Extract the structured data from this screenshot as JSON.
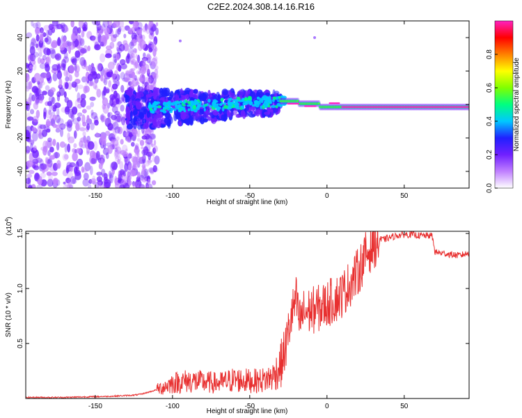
{
  "title": "C2E2.2024.308.14.16.R16",
  "chart_data": [
    {
      "type": "heatmap",
      "title": "C2E2.2024.308.14.16.R16",
      "xlabel": "Height of straight line (km)",
      "ylabel": "Frequency (Hz)",
      "xlim": [
        -195,
        92
      ],
      "ylim": [
        -50,
        50
      ],
      "x_ticks": [
        "-150",
        "-100",
        "-50",
        "0",
        "50"
      ],
      "x_tick_values": [
        -150,
        -100,
        -50,
        0,
        50
      ],
      "y_ticks": [
        "-40",
        "-20",
        "0",
        "20",
        "40"
      ],
      "y_tick_values": [
        -40,
        -20,
        0,
        20,
        40
      ],
      "colorbar": {
        "label": "Normalized spectral amplitude",
        "range": [
          0,
          1
        ],
        "ticks": [
          "0.0",
          "0.2",
          "0.4",
          "0.6",
          "0.8"
        ],
        "tick_values": [
          0.0,
          0.2,
          0.4,
          0.6,
          0.8
        ],
        "colors": [
          "#ffffff",
          "#c080ff",
          "#7020ff",
          "#2020ff",
          "#00c8ff",
          "#00ff80",
          "#80ff00",
          "#ffff00",
          "#ff8000",
          "#ff0000",
          "#ff20c0"
        ]
      },
      "regions": [
        {
          "x_range": [
            -195,
            -110
          ],
          "freq_range": [
            -50,
            50
          ],
          "description_level": "scattered low amplitude"
        },
        {
          "x_range": [
            -130,
            -30
          ],
          "freq_range": [
            -15,
            12
          ],
          "description_level": "blue to cyan band"
        },
        {
          "x_range": [
            -30,
            5
          ],
          "freq_range": [
            -3,
            5
          ],
          "description_level": "green to red band"
        },
        {
          "x_range": [
            5,
            92
          ],
          "freq_range": [
            -3,
            1
          ],
          "description_level": "narrow red-green line"
        }
      ]
    },
    {
      "type": "line",
      "xlabel": "Height of straight line (km)",
      "ylabel": "SNR (10 * v/v)",
      "y_multiplier": "(x10",
      "y_multiplier_exp": "4",
      "y_multiplier_close": ")",
      "xlim": [
        -195,
        92
      ],
      "ylim": [
        0,
        1.52
      ],
      "x_ticks": [
        "-150",
        "-100",
        "-50",
        "0",
        "50"
      ],
      "x_tick_values": [
        -150,
        -100,
        -50,
        0,
        50
      ],
      "y_ticks": [
        "0.5",
        "1.0",
        "1.5"
      ],
      "y_tick_values": [
        0.5,
        1.0,
        1.5
      ],
      "color": "#e83030",
      "series": [
        {
          "name": "SNR",
          "x": [
            -195,
            -170,
            -140,
            -125,
            -120,
            -110,
            -100,
            -90,
            -80,
            -70,
            -60,
            -50,
            -45,
            -40,
            -35,
            -30,
            -27,
            -25,
            -23,
            -21,
            -20,
            -18,
            -15,
            -10,
            -5,
            0,
            5,
            10,
            15,
            20,
            25,
            30,
            35,
            40,
            45,
            50,
            55,
            60,
            65,
            68,
            70,
            75,
            80,
            85,
            92
          ],
          "y": [
            0.01,
            0.01,
            0.02,
            0.03,
            0.04,
            0.08,
            0.14,
            0.16,
            0.15,
            0.14,
            0.17,
            0.16,
            0.16,
            0.17,
            0.2,
            0.3,
            0.45,
            0.6,
            0.75,
            0.85,
            0.9,
            0.7,
            0.78,
            0.8,
            0.82,
            0.86,
            0.9,
            0.95,
            1.05,
            1.15,
            1.3,
            1.4,
            1.44,
            1.46,
            1.48,
            1.49,
            1.49,
            1.48,
            1.48,
            1.48,
            1.33,
            1.32,
            1.31,
            1.3,
            1.32
          ]
        }
      ]
    }
  ]
}
